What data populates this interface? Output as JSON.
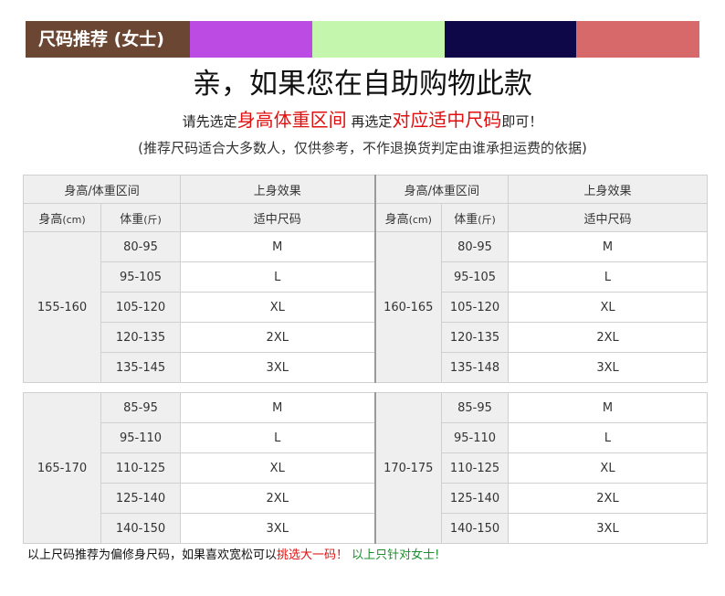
{
  "banner": {
    "title": "尺码推荐 (女士)",
    "swatches": [
      "#bb4be2",
      "#c4f6ad",
      "#0e0848",
      "#d8696a"
    ]
  },
  "headline": "亲，如果您在自助购物此款",
  "sub": {
    "p1": "请先选定",
    "h1": "身高体重区间",
    "p2": " 再选定",
    "h2": "对应适中尺码",
    "p3": "即可！"
  },
  "note": "(推荐尺码适合大多数人，仅供参考，不作退换货判定由谁承担运费的依据)",
  "header": {
    "range_title": "身高/体重区间",
    "effect_title": "上身效果",
    "height_label": "身高",
    "height_unit": "(cm)",
    "weight_label": "体重",
    "weight_unit": "(斤)",
    "fit_label": "适中尺码"
  },
  "table1": {
    "left": {
      "height": "155-160",
      "rows": [
        {
          "weight": "80-95",
          "size": "M"
        },
        {
          "weight": "95-105",
          "size": "L"
        },
        {
          "weight": "105-120",
          "size": "XL"
        },
        {
          "weight": "120-135",
          "size": "2XL"
        },
        {
          "weight": "135-145",
          "size": "3XL"
        }
      ]
    },
    "right": {
      "height": "160-165",
      "rows": [
        {
          "weight": "80-95",
          "size": "M"
        },
        {
          "weight": "95-105",
          "size": "L"
        },
        {
          "weight": "105-120",
          "size": "XL"
        },
        {
          "weight": "120-135",
          "size": "2XL"
        },
        {
          "weight": "135-148",
          "size": "3XL"
        }
      ]
    }
  },
  "table2": {
    "left": {
      "height": "165-170",
      "rows": [
        {
          "weight": "85-95",
          "size": "M"
        },
        {
          "weight": "95-110",
          "size": "L"
        },
        {
          "weight": "110-125",
          "size": "XL"
        },
        {
          "weight": "125-140",
          "size": "2XL"
        },
        {
          "weight": "140-150",
          "size": "3XL"
        }
      ]
    },
    "right": {
      "height": "170-175",
      "rows": [
        {
          "weight": "85-95",
          "size": "M"
        },
        {
          "weight": "95-110",
          "size": "L"
        },
        {
          "weight": "110-125",
          "size": "XL"
        },
        {
          "weight": "125-140",
          "size": "2XL"
        },
        {
          "weight": "140-150",
          "size": "3XL"
        }
      ]
    }
  },
  "footer": {
    "p1": "以上尺码推荐为偏修身尺码，如果喜欢宽松可以",
    "red": "挑选大一码！",
    "green": " 以上只针对女士!"
  }
}
